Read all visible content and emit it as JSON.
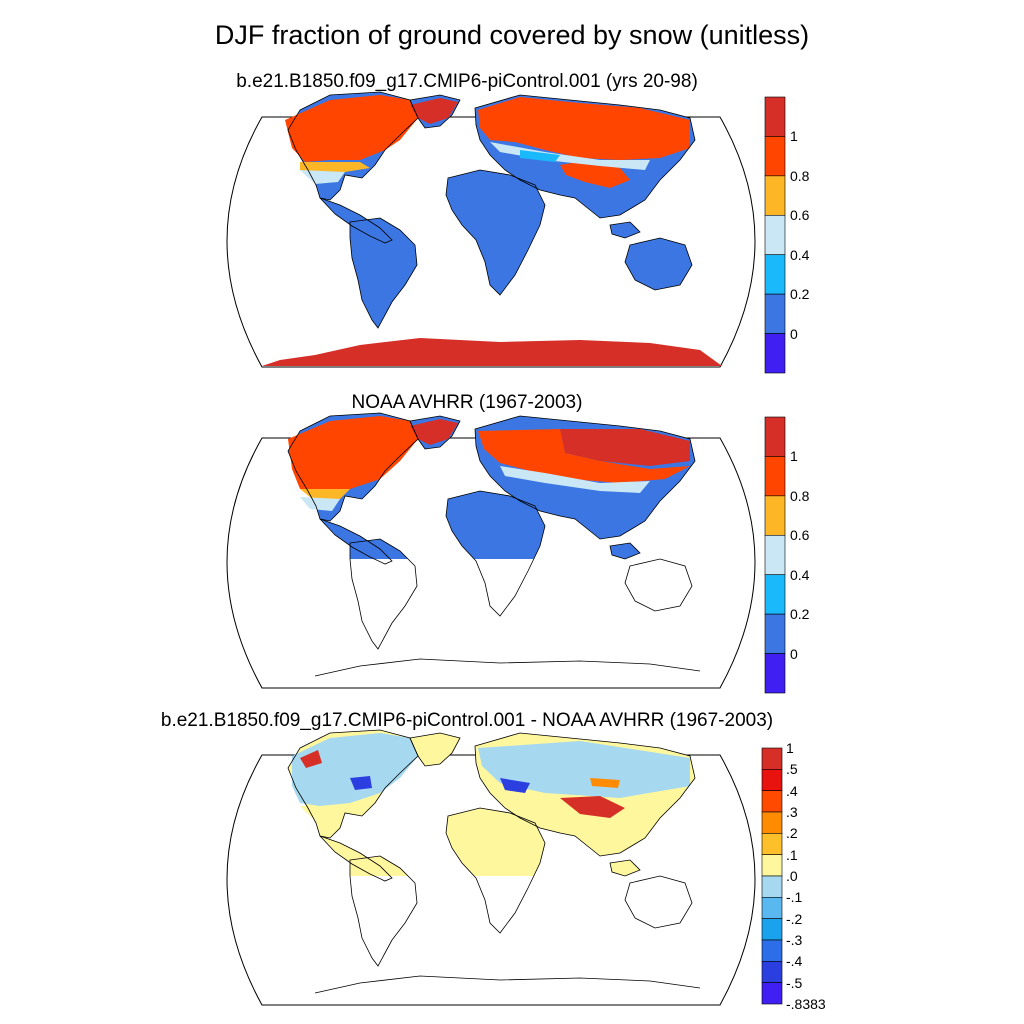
{
  "title": "DJF fraction of ground covered by snow (unitless)",
  "panels": [
    {
      "title": "b.e21.B1850.f09_g17.CMIP6-piControl.001 (yrs 20-98)",
      "colorbar": {
        "labels": [
          "1",
          "0.8",
          "0.6",
          "0.4",
          "0.2",
          "0"
        ],
        "colors": [
          "#d62f27",
          "#ff4500",
          "#fdb726",
          "#c9e7f5",
          "#1ab9fb",
          "#3b76e3",
          "#3f1ff2"
        ]
      }
    },
    {
      "title": "NOAA AVHRR (1967-2003)",
      "colorbar": {
        "labels": [
          "1",
          "0.8",
          "0.6",
          "0.4",
          "0.2",
          "0"
        ],
        "colors": [
          "#d62f27",
          "#ff4500",
          "#fdb726",
          "#c9e7f5",
          "#1ab9fb",
          "#3b76e3",
          "#3f1ff2"
        ]
      }
    },
    {
      "title": "b.e21.B1850.f09_g17.CMIP6-piControl.001 - NOAA AVHRR (1967-2003)",
      "colorbar": {
        "labels": [
          "1",
          ".5",
          ".4",
          ".3",
          ".2",
          ".1",
          ".0",
          "-.1",
          "-.2",
          "-.3",
          "-.4",
          "-.5",
          "-.8383"
        ],
        "colors": [
          "#d62f27",
          "#e8120e",
          "#ff4a00",
          "#ff8c00",
          "#fdc02a",
          "#fff79e",
          "#a6d9f0",
          "#5ab8f0",
          "#1aa2ef",
          "#2b6ee8",
          "#2b3fe0",
          "#3f1ff2"
        ]
      }
    }
  ]
}
